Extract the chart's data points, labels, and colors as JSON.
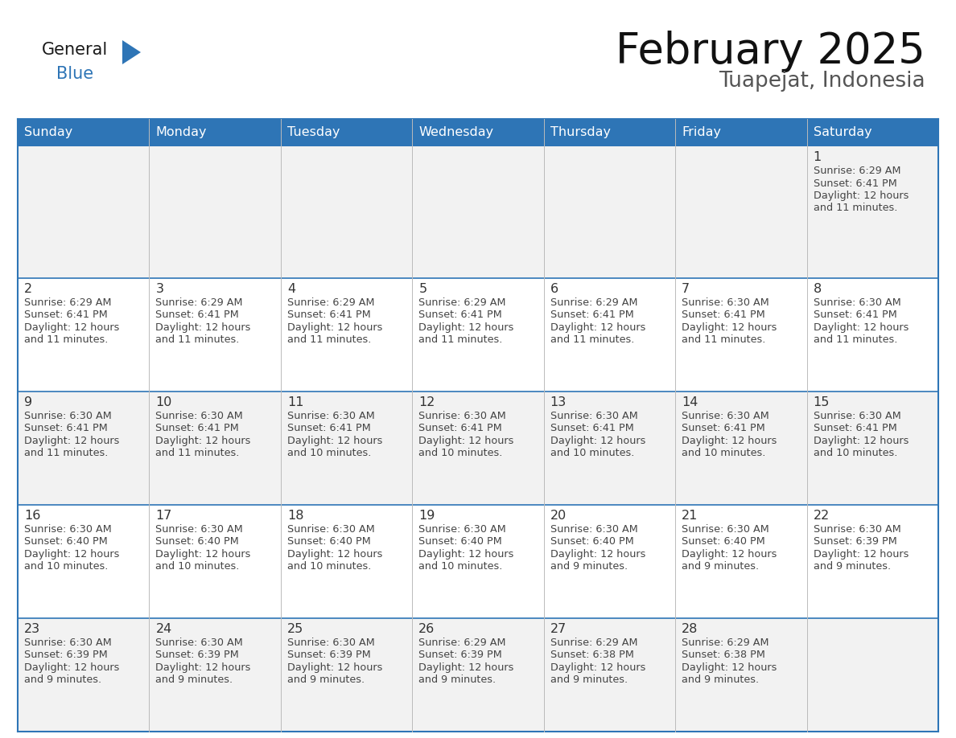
{
  "title": "February 2025",
  "subtitle": "Tuapejat, Indonesia",
  "header_bg": "#2E75B6",
  "header_text_color": "#FFFFFF",
  "cell_bg_white": "#FFFFFF",
  "cell_bg_gray": "#F2F2F2",
  "day_number_color": "#333333",
  "cell_text_color": "#444444",
  "border_color": "#2E75B6",
  "days_of_week": [
    "Sunday",
    "Monday",
    "Tuesday",
    "Wednesday",
    "Thursday",
    "Friday",
    "Saturday"
  ],
  "logo_general_color": "#1a1a1a",
  "logo_blue_color": "#2E75B6",
  "calendar_data": [
    [
      null,
      null,
      null,
      null,
      null,
      null,
      {
        "day": "1",
        "sunrise": "6:29 AM",
        "sunset": "6:41 PM",
        "daylight_line1": "Daylight: 12 hours",
        "daylight_line2": "and 11 minutes."
      }
    ],
    [
      {
        "day": "2",
        "sunrise": "6:29 AM",
        "sunset": "6:41 PM",
        "daylight_line1": "Daylight: 12 hours",
        "daylight_line2": "and 11 minutes."
      },
      {
        "day": "3",
        "sunrise": "6:29 AM",
        "sunset": "6:41 PM",
        "daylight_line1": "Daylight: 12 hours",
        "daylight_line2": "and 11 minutes."
      },
      {
        "day": "4",
        "sunrise": "6:29 AM",
        "sunset": "6:41 PM",
        "daylight_line1": "Daylight: 12 hours",
        "daylight_line2": "and 11 minutes."
      },
      {
        "day": "5",
        "sunrise": "6:29 AM",
        "sunset": "6:41 PM",
        "daylight_line1": "Daylight: 12 hours",
        "daylight_line2": "and 11 minutes."
      },
      {
        "day": "6",
        "sunrise": "6:29 AM",
        "sunset": "6:41 PM",
        "daylight_line1": "Daylight: 12 hours",
        "daylight_line2": "and 11 minutes."
      },
      {
        "day": "7",
        "sunrise": "6:30 AM",
        "sunset": "6:41 PM",
        "daylight_line1": "Daylight: 12 hours",
        "daylight_line2": "and 11 minutes."
      },
      {
        "day": "8",
        "sunrise": "6:30 AM",
        "sunset": "6:41 PM",
        "daylight_line1": "Daylight: 12 hours",
        "daylight_line2": "and 11 minutes."
      }
    ],
    [
      {
        "day": "9",
        "sunrise": "6:30 AM",
        "sunset": "6:41 PM",
        "daylight_line1": "Daylight: 12 hours",
        "daylight_line2": "and 11 minutes."
      },
      {
        "day": "10",
        "sunrise": "6:30 AM",
        "sunset": "6:41 PM",
        "daylight_line1": "Daylight: 12 hours",
        "daylight_line2": "and 11 minutes."
      },
      {
        "day": "11",
        "sunrise": "6:30 AM",
        "sunset": "6:41 PM",
        "daylight_line1": "Daylight: 12 hours",
        "daylight_line2": "and 10 minutes."
      },
      {
        "day": "12",
        "sunrise": "6:30 AM",
        "sunset": "6:41 PM",
        "daylight_line1": "Daylight: 12 hours",
        "daylight_line2": "and 10 minutes."
      },
      {
        "day": "13",
        "sunrise": "6:30 AM",
        "sunset": "6:41 PM",
        "daylight_line1": "Daylight: 12 hours",
        "daylight_line2": "and 10 minutes."
      },
      {
        "day": "14",
        "sunrise": "6:30 AM",
        "sunset": "6:41 PM",
        "daylight_line1": "Daylight: 12 hours",
        "daylight_line2": "and 10 minutes."
      },
      {
        "day": "15",
        "sunrise": "6:30 AM",
        "sunset": "6:41 PM",
        "daylight_line1": "Daylight: 12 hours",
        "daylight_line2": "and 10 minutes."
      }
    ],
    [
      {
        "day": "16",
        "sunrise": "6:30 AM",
        "sunset": "6:40 PM",
        "daylight_line1": "Daylight: 12 hours",
        "daylight_line2": "and 10 minutes."
      },
      {
        "day": "17",
        "sunrise": "6:30 AM",
        "sunset": "6:40 PM",
        "daylight_line1": "Daylight: 12 hours",
        "daylight_line2": "and 10 minutes."
      },
      {
        "day": "18",
        "sunrise": "6:30 AM",
        "sunset": "6:40 PM",
        "daylight_line1": "Daylight: 12 hours",
        "daylight_line2": "and 10 minutes."
      },
      {
        "day": "19",
        "sunrise": "6:30 AM",
        "sunset": "6:40 PM",
        "daylight_line1": "Daylight: 12 hours",
        "daylight_line2": "and 10 minutes."
      },
      {
        "day": "20",
        "sunrise": "6:30 AM",
        "sunset": "6:40 PM",
        "daylight_line1": "Daylight: 12 hours",
        "daylight_line2": "and 9 minutes."
      },
      {
        "day": "21",
        "sunrise": "6:30 AM",
        "sunset": "6:40 PM",
        "daylight_line1": "Daylight: 12 hours",
        "daylight_line2": "and 9 minutes."
      },
      {
        "day": "22",
        "sunrise": "6:30 AM",
        "sunset": "6:39 PM",
        "daylight_line1": "Daylight: 12 hours",
        "daylight_line2": "and 9 minutes."
      }
    ],
    [
      {
        "day": "23",
        "sunrise": "6:30 AM",
        "sunset": "6:39 PM",
        "daylight_line1": "Daylight: 12 hours",
        "daylight_line2": "and 9 minutes."
      },
      {
        "day": "24",
        "sunrise": "6:30 AM",
        "sunset": "6:39 PM",
        "daylight_line1": "Daylight: 12 hours",
        "daylight_line2": "and 9 minutes."
      },
      {
        "day": "25",
        "sunrise": "6:30 AM",
        "sunset": "6:39 PM",
        "daylight_line1": "Daylight: 12 hours",
        "daylight_line2": "and 9 minutes."
      },
      {
        "day": "26",
        "sunrise": "6:29 AM",
        "sunset": "6:39 PM",
        "daylight_line1": "Daylight: 12 hours",
        "daylight_line2": "and 9 minutes."
      },
      {
        "day": "27",
        "sunrise": "6:29 AM",
        "sunset": "6:38 PM",
        "daylight_line1": "Daylight: 12 hours",
        "daylight_line2": "and 9 minutes."
      },
      {
        "day": "28",
        "sunrise": "6:29 AM",
        "sunset": "6:38 PM",
        "daylight_line1": "Daylight: 12 hours",
        "daylight_line2": "and 9 minutes."
      },
      null
    ]
  ]
}
